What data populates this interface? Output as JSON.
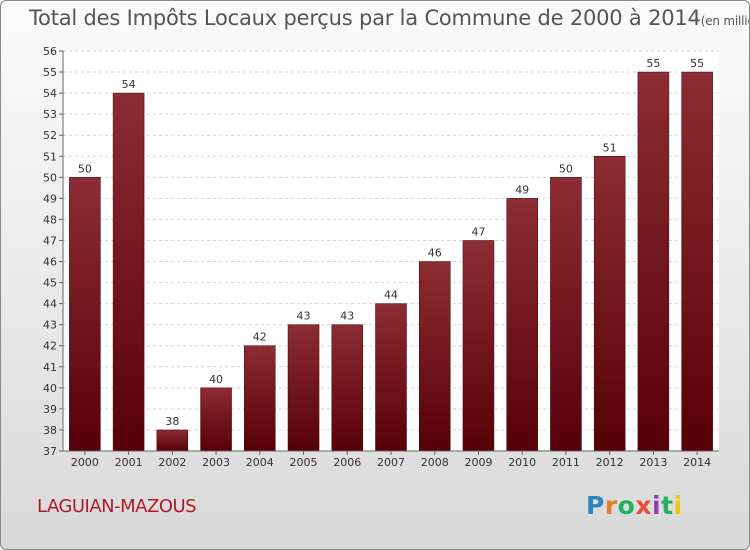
{
  "chart_data": {
    "type": "bar",
    "title": "Total des Impôts Locaux perçus par la Commune de 2000 à 2014",
    "unit": "(en milliers d'€)",
    "categories": [
      "2000",
      "2001",
      "2002",
      "2003",
      "2004",
      "2005",
      "2006",
      "2007",
      "2008",
      "2009",
      "2010",
      "2011",
      "2012",
      "2013",
      "2014"
    ],
    "values": [
      50,
      54,
      38,
      40,
      42,
      43,
      43,
      44,
      46,
      47,
      49,
      50,
      51,
      55,
      55
    ],
    "ylim": [
      37,
      56
    ],
    "yticks": [
      37,
      38,
      39,
      40,
      41,
      42,
      43,
      44,
      45,
      46,
      47,
      48,
      49,
      50,
      51,
      52,
      53,
      54,
      55,
      56
    ],
    "xlabel": "",
    "ylabel": "",
    "grid": "horizontal-dashed",
    "bar_color": "#7a1a22"
  },
  "commune": "LAGUIAN-MAZOUS",
  "logo": {
    "text": "Proxiti"
  }
}
